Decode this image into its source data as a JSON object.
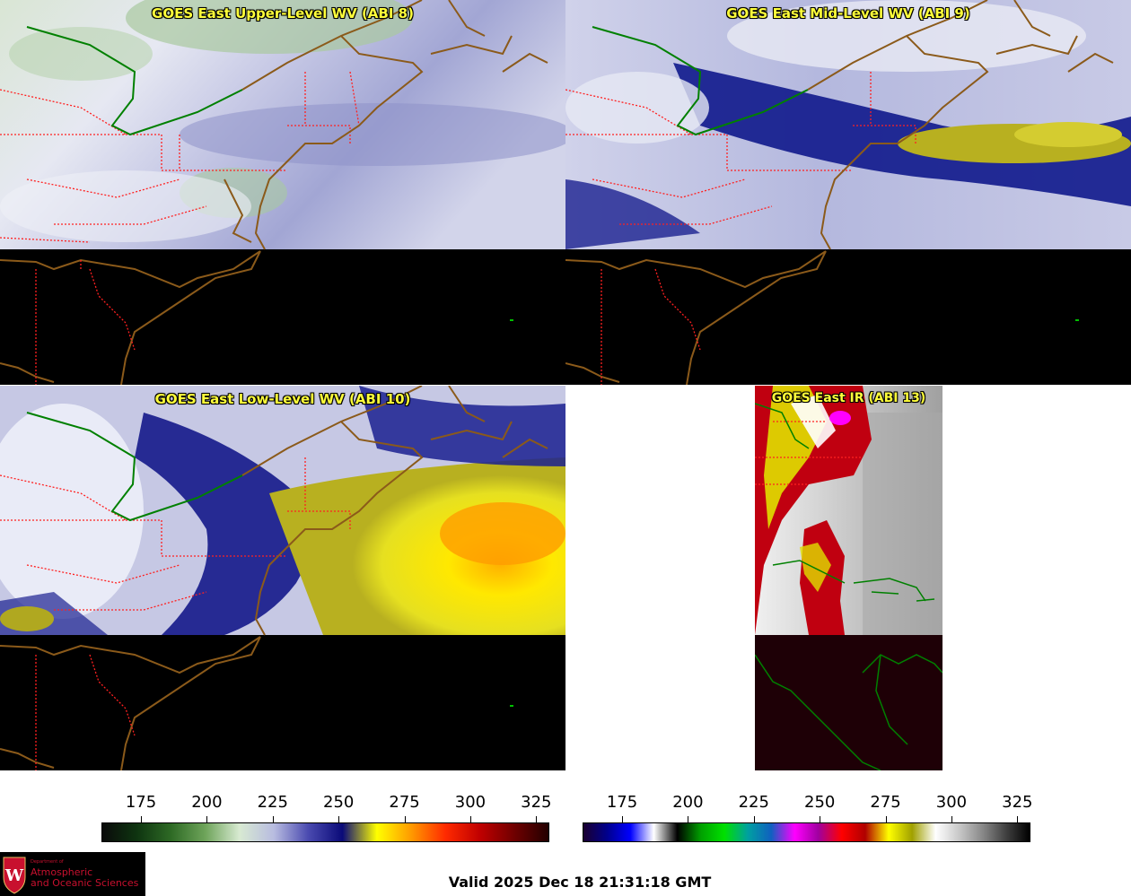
{
  "panels": {
    "upper": {
      "title": "GOES East Upper-Level WV (ABI 8)"
    },
    "mid": {
      "title": "GOES East Mid-Level WV (ABI 9)"
    },
    "low": {
      "title": "GOES East Low-Level WV (ABI 10)"
    },
    "ir": {
      "title": "GOES East IR (ABI 13)"
    }
  },
  "colorbars": {
    "wv": {
      "ticks": [
        "175",
        "200",
        "225",
        "250",
        "275",
        "300",
        "325"
      ],
      "stops": [
        "#0a0a0a",
        "#0e3410",
        "#2e6a25",
        "#6ea45a",
        "#d8ead2",
        "#b8bce0",
        "#4a4ab0",
        "#0a0a78",
        "#ffff00",
        "#ff9a00",
        "#ff2a00",
        "#c00000",
        "#700000",
        "#220000"
      ]
    },
    "ir": {
      "ticks": [
        "175",
        "200",
        "225",
        "250",
        "275",
        "300",
        "325"
      ],
      "stops": [
        "#1a0030",
        "#00008c",
        "#0000ff",
        "#ffffff",
        "#000000",
        "#00a000",
        "#00e000",
        "#00a0a0",
        "#1060c0",
        "#ff00ff",
        "#a000a0",
        "#ff0000",
        "#b00000",
        "#ffff00",
        "#a0a000",
        "#ffffff",
        "#c8c8c8",
        "#888888",
        "#404040",
        "#000000"
      ]
    }
  },
  "logo": {
    "department": "Department of",
    "line1": "Atmospheric",
    "line2": "and Oceanic Sciences"
  },
  "valid_time": "Valid 2025 Dec 18 21:31:18 GMT",
  "colors": {
    "title_text": "#ffff3a",
    "state_borders": "#ff2020",
    "coastlines": "#8b5a1a",
    "country_border": "#008000",
    "night_background": "#000000"
  }
}
